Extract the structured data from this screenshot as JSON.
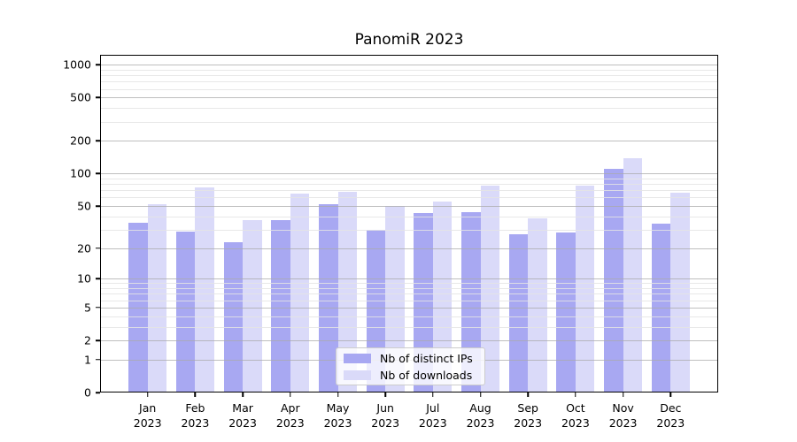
{
  "chart_data": {
    "type": "bar",
    "title": "PanomiR 2023",
    "categories": [
      "Jan 2023",
      "Feb 2023",
      "Mar 2023",
      "Apr 2023",
      "May 2023",
      "Jun 2023",
      "Jul 2023",
      "Aug 2023",
      "Sep 2023",
      "Oct 2023",
      "Nov 2023",
      "Dec 2023"
    ],
    "months": [
      "Jan",
      "Feb",
      "Mar",
      "Apr",
      "May",
      "Jun",
      "Jul",
      "Aug",
      "Sep",
      "Oct",
      "Nov",
      "Dec"
    ],
    "year": "2023",
    "series": [
      {
        "id": "distinct-ips",
        "name": "Nb of distinct IPs",
        "color": "#a8a8f2",
        "values": [
          35,
          29,
          23,
          37,
          52,
          30,
          43,
          44,
          27,
          28,
          110,
          34
        ]
      },
      {
        "id": "downloads",
        "name": "Nb of downloads",
        "color": "#dadaf9",
        "values": [
          52,
          75,
          37,
          65,
          68,
          50,
          55,
          78,
          38,
          77,
          140,
          66
        ]
      }
    ],
    "y_scale": "symlog",
    "ylabel": "",
    "xlabel": "",
    "y_ticks": [
      0,
      1,
      2,
      5,
      10,
      20,
      50,
      100,
      200,
      500,
      1000
    ],
    "y_minor_ticks": [
      3,
      4,
      6,
      7,
      8,
      9,
      30,
      40,
      60,
      70,
      80,
      90,
      300,
      400,
      600,
      700,
      800,
      900
    ],
    "ylim": [
      0,
      1236
    ],
    "grid": true,
    "grid_over_bars": true,
    "legend_position": "lower center"
  }
}
